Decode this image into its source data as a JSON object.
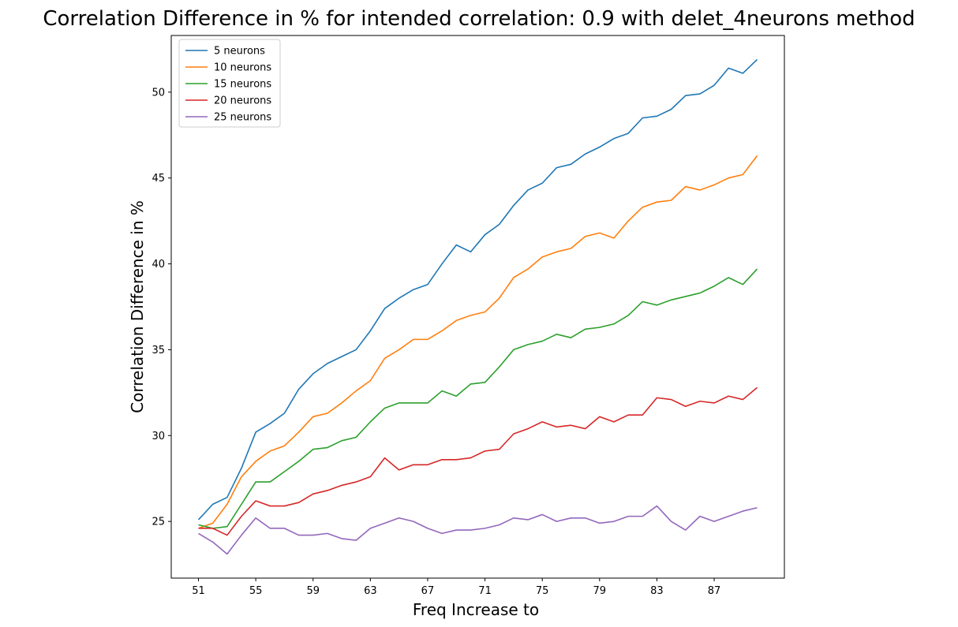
{
  "chart_data": {
    "type": "line",
    "title": "Correlation Difference in % for intended correlation:  0.9 with delet_4neurons method",
    "xlabel": "Freq Increase to",
    "ylabel": "Correlation Difference in %",
    "x": [
      51,
      52,
      53,
      54,
      55,
      56,
      57,
      58,
      59,
      60,
      61,
      62,
      63,
      64,
      65,
      66,
      67,
      68,
      69,
      70,
      71,
      72,
      73,
      74,
      75,
      76,
      77,
      78,
      79,
      80,
      81,
      82,
      83,
      84,
      85,
      86,
      87,
      88,
      89,
      90
    ],
    "xticks": [
      51,
      55,
      59,
      63,
      67,
      71,
      75,
      79,
      83,
      87
    ],
    "yticks": [
      25,
      30,
      35,
      40,
      45,
      50
    ],
    "xlim": [
      49.1,
      91.9
    ],
    "ylim": [
      21.7,
      53.3
    ],
    "grid": false,
    "legend_position": "upper-left",
    "series": [
      {
        "name": "5 neurons",
        "color": "#1f77b4",
        "values": [
          25.1,
          26.0,
          26.4,
          28.1,
          30.2,
          30.7,
          31.3,
          32.7,
          33.6,
          34.2,
          34.6,
          35.0,
          36.1,
          37.4,
          38.0,
          38.5,
          38.8,
          40.0,
          41.1,
          40.7,
          41.7,
          42.3,
          43.4,
          44.3,
          44.7,
          45.6,
          45.8,
          46.4,
          46.8,
          47.3,
          47.6,
          48.5,
          48.6,
          49.0,
          49.8,
          49.9,
          50.4,
          51.4,
          51.1,
          51.9
        ]
      },
      {
        "name": "10 neurons",
        "color": "#ff7f0e",
        "values": [
          24.6,
          24.9,
          26.0,
          27.6,
          28.5,
          29.1,
          29.4,
          30.2,
          31.1,
          31.3,
          31.9,
          32.6,
          33.2,
          34.5,
          35.0,
          35.6,
          35.6,
          36.1,
          36.7,
          37.0,
          37.2,
          38.0,
          39.2,
          39.7,
          40.4,
          40.7,
          40.9,
          41.6,
          41.8,
          41.5,
          42.5,
          43.3,
          43.6,
          43.7,
          44.5,
          44.3,
          44.6,
          45.0,
          45.2,
          46.3
        ]
      },
      {
        "name": "15 neurons",
        "color": "#2ca02c",
        "values": [
          24.8,
          24.6,
          24.7,
          26.0,
          27.3,
          27.3,
          27.9,
          28.5,
          29.2,
          29.3,
          29.7,
          29.9,
          30.8,
          31.6,
          31.9,
          31.9,
          31.9,
          32.6,
          32.3,
          33.0,
          33.1,
          34.0,
          35.0,
          35.3,
          35.5,
          35.9,
          35.7,
          36.2,
          36.3,
          36.5,
          37.0,
          37.8,
          37.6,
          37.9,
          38.1,
          38.3,
          38.7,
          39.2,
          38.8,
          39.7
        ]
      },
      {
        "name": "20 neurons",
        "color": "#d62728",
        "values": [
          24.6,
          24.6,
          24.2,
          25.3,
          26.2,
          25.9,
          25.9,
          26.1,
          26.6,
          26.8,
          27.1,
          27.3,
          27.6,
          28.7,
          28.0,
          28.3,
          28.3,
          28.6,
          28.6,
          28.7,
          29.1,
          29.2,
          30.1,
          30.4,
          30.8,
          30.5,
          30.6,
          30.4,
          31.1,
          30.8,
          31.2,
          31.2,
          32.2,
          32.1,
          31.7,
          32.0,
          31.9,
          32.3,
          32.1,
          32.8
        ]
      },
      {
        "name": "25 neurons",
        "color": "#9467bd",
        "values": [
          24.3,
          23.8,
          23.1,
          24.2,
          25.2,
          24.6,
          24.6,
          24.2,
          24.2,
          24.3,
          24.0,
          23.9,
          24.6,
          24.9,
          25.2,
          25.0,
          24.6,
          24.3,
          24.5,
          24.5,
          24.6,
          24.8,
          25.2,
          25.1,
          25.4,
          25.0,
          25.2,
          25.2,
          24.9,
          25.0,
          25.3,
          25.3,
          25.9,
          25.0,
          24.5,
          25.3,
          25.0,
          25.3,
          25.6,
          25.8
        ]
      }
    ]
  }
}
